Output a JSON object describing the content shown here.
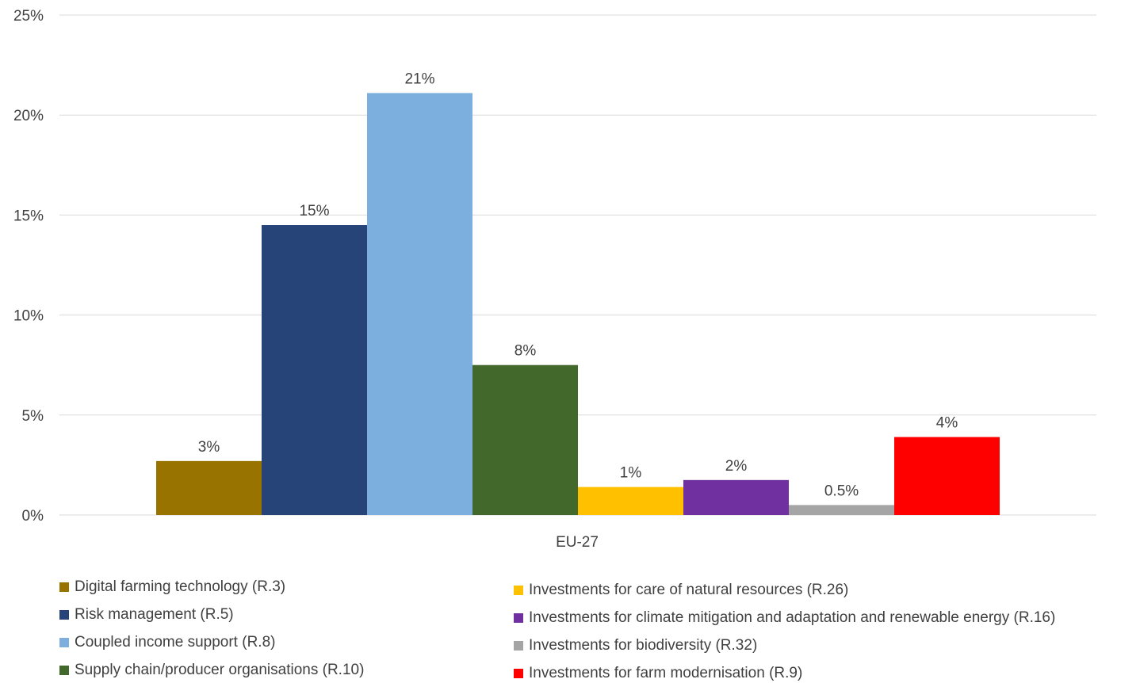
{
  "chart_data": {
    "type": "bar",
    "categories": [
      "EU-27"
    ],
    "ylim": [
      0,
      25
    ],
    "yticks": [
      "0%",
      "5%",
      "10%",
      "15%",
      "20%",
      "25%"
    ],
    "ytick_values": [
      0,
      5,
      10,
      15,
      20,
      25
    ],
    "grid": true,
    "legend_position": "bottom",
    "series": [
      {
        "name": "Digital farming technology (R.3)",
        "value": 2.7,
        "label": "3%",
        "color": "#997300"
      },
      {
        "name": "Risk management (R.5)",
        "value": 14.5,
        "label": "15%",
        "color": "#264478"
      },
      {
        "name": "Coupled income support (R.8)",
        "value": 21.1,
        "label": "21%",
        "color": "#7cafdd"
      },
      {
        "name": "Supply chain/producer organisations (R.10)",
        "value": 7.5,
        "label": "8%",
        "color": "#43682b"
      },
      {
        "name": "Investments for care of natural resources (R.26)",
        "value": 1.4,
        "label": "1%",
        "color": "#ffc000"
      },
      {
        "name": "Investments for climate mitigation and adaptation and renewable energy (R.16)",
        "value": 1.75,
        "label": "2%",
        "color": "#7030a0"
      },
      {
        "name": "Investments for biodiversity (R.32)",
        "value": 0.5,
        "label": "0.5%",
        "color": "#a5a5a5"
      },
      {
        "name": "Investments for farm modernisation (R.9)",
        "value": 3.9,
        "label": "4%",
        "color": "#ff0000"
      }
    ]
  }
}
